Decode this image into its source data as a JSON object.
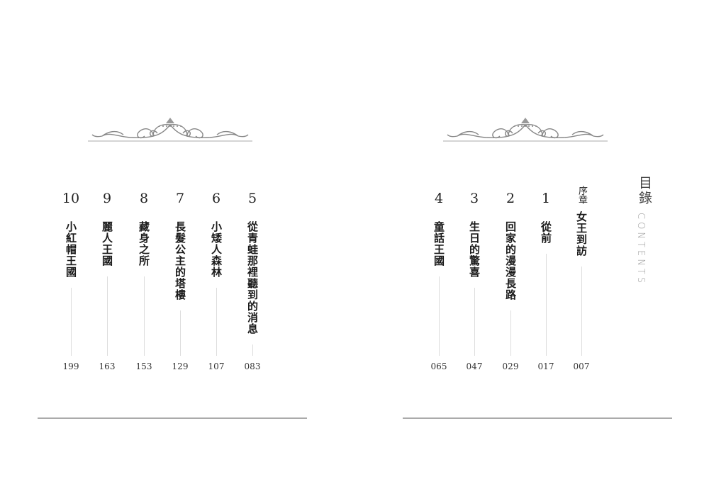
{
  "heading": {
    "title": "目錄",
    "subtitle": "CONTENTS"
  },
  "left_page": {
    "chapters": [
      {
        "number": "10",
        "title": "小紅帽王國",
        "page": "199"
      },
      {
        "number": "9",
        "title": "麗人王國",
        "page": "163"
      },
      {
        "number": "8",
        "title": "藏身之所",
        "page": "153"
      },
      {
        "number": "7",
        "title": "長髮公主的塔樓",
        "page": "129"
      },
      {
        "number": "6",
        "title": "小矮人森林",
        "page": "107"
      },
      {
        "number": "5",
        "title": "從青蛙那裡聽到的消息",
        "page": "083"
      }
    ]
  },
  "right_page": {
    "chapters": [
      {
        "number": "4",
        "title": "童話王國",
        "page": "065"
      },
      {
        "number": "3",
        "title": "生日的驚喜",
        "page": "047"
      },
      {
        "number": "2",
        "title": "回家的漫漫長路",
        "page": "029"
      },
      {
        "number": "1",
        "title": "從前",
        "page": "017"
      },
      {
        "number": "序章",
        "title": "女王到訪",
        "page": "007"
      }
    ]
  },
  "colors": {
    "rule": "#aaaaaa",
    "ornament": "#888888",
    "leader": "#dddddd"
  }
}
